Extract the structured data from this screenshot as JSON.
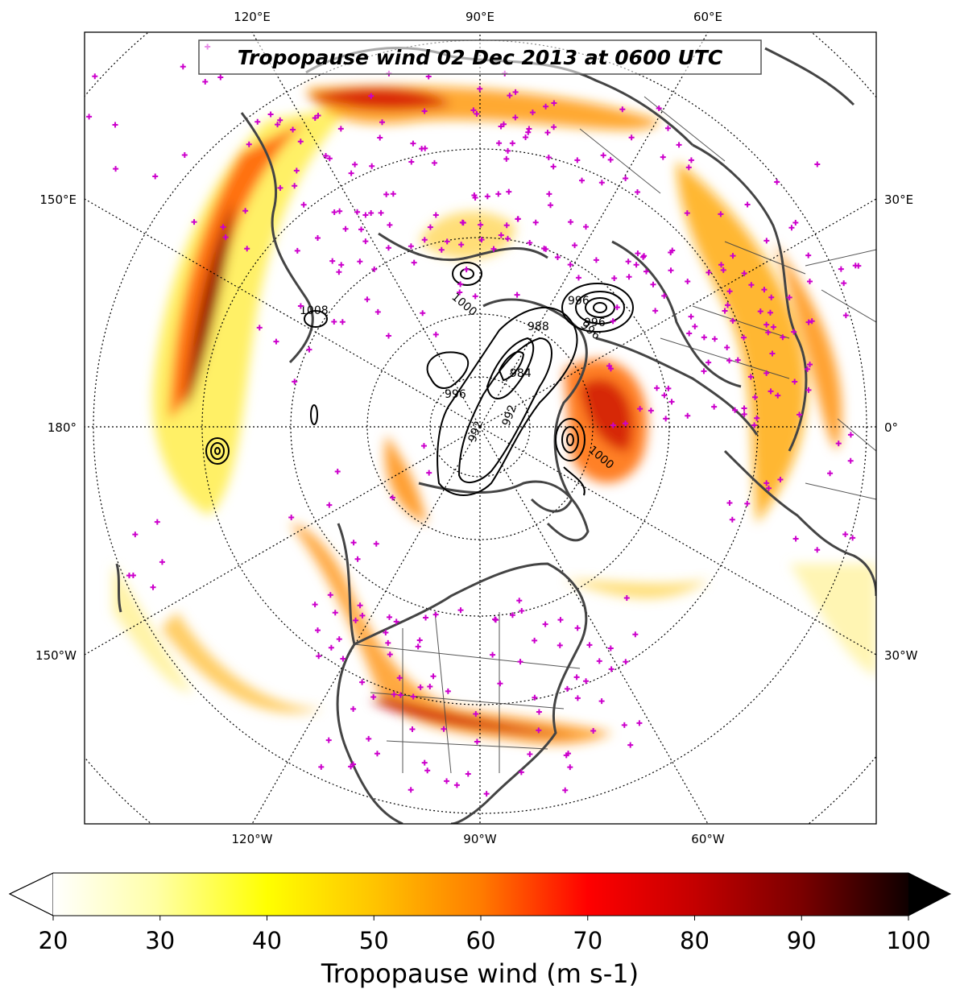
{
  "title": "Tropopause wind 02 Dec 2013 at 0600 UTC",
  "longitude_labels": {
    "top": [
      "120°E",
      "90°E",
      "60°E"
    ],
    "left": [
      "150°E",
      "180°",
      "150°W"
    ],
    "right": [
      "30°E",
      "0°",
      "30°W"
    ],
    "bottom": [
      "120°W",
      "90°W",
      "60°W"
    ]
  },
  "contour_labels": [
    "1008",
    "1000",
    "996",
    "988",
    "984",
    "996",
    "992",
    "992",
    "996",
    "996",
    "1000"
  ],
  "colorbar": {
    "label": "Tropopause wind (m s-1)",
    "ticks": [
      "20",
      "30",
      "40",
      "50",
      "60",
      "70",
      "80",
      "90",
      "100"
    ],
    "min": 20,
    "max": 100,
    "extend": "both",
    "colormap": "hot_r"
  },
  "colors": {
    "station_marker": "#cc00cc",
    "coastline": "#444444",
    "contour": "#000000"
  },
  "layers": [
    "tropopause-wind-fill",
    "mslp-contours",
    "coastlines",
    "borders",
    "station-markers",
    "graticule"
  ]
}
